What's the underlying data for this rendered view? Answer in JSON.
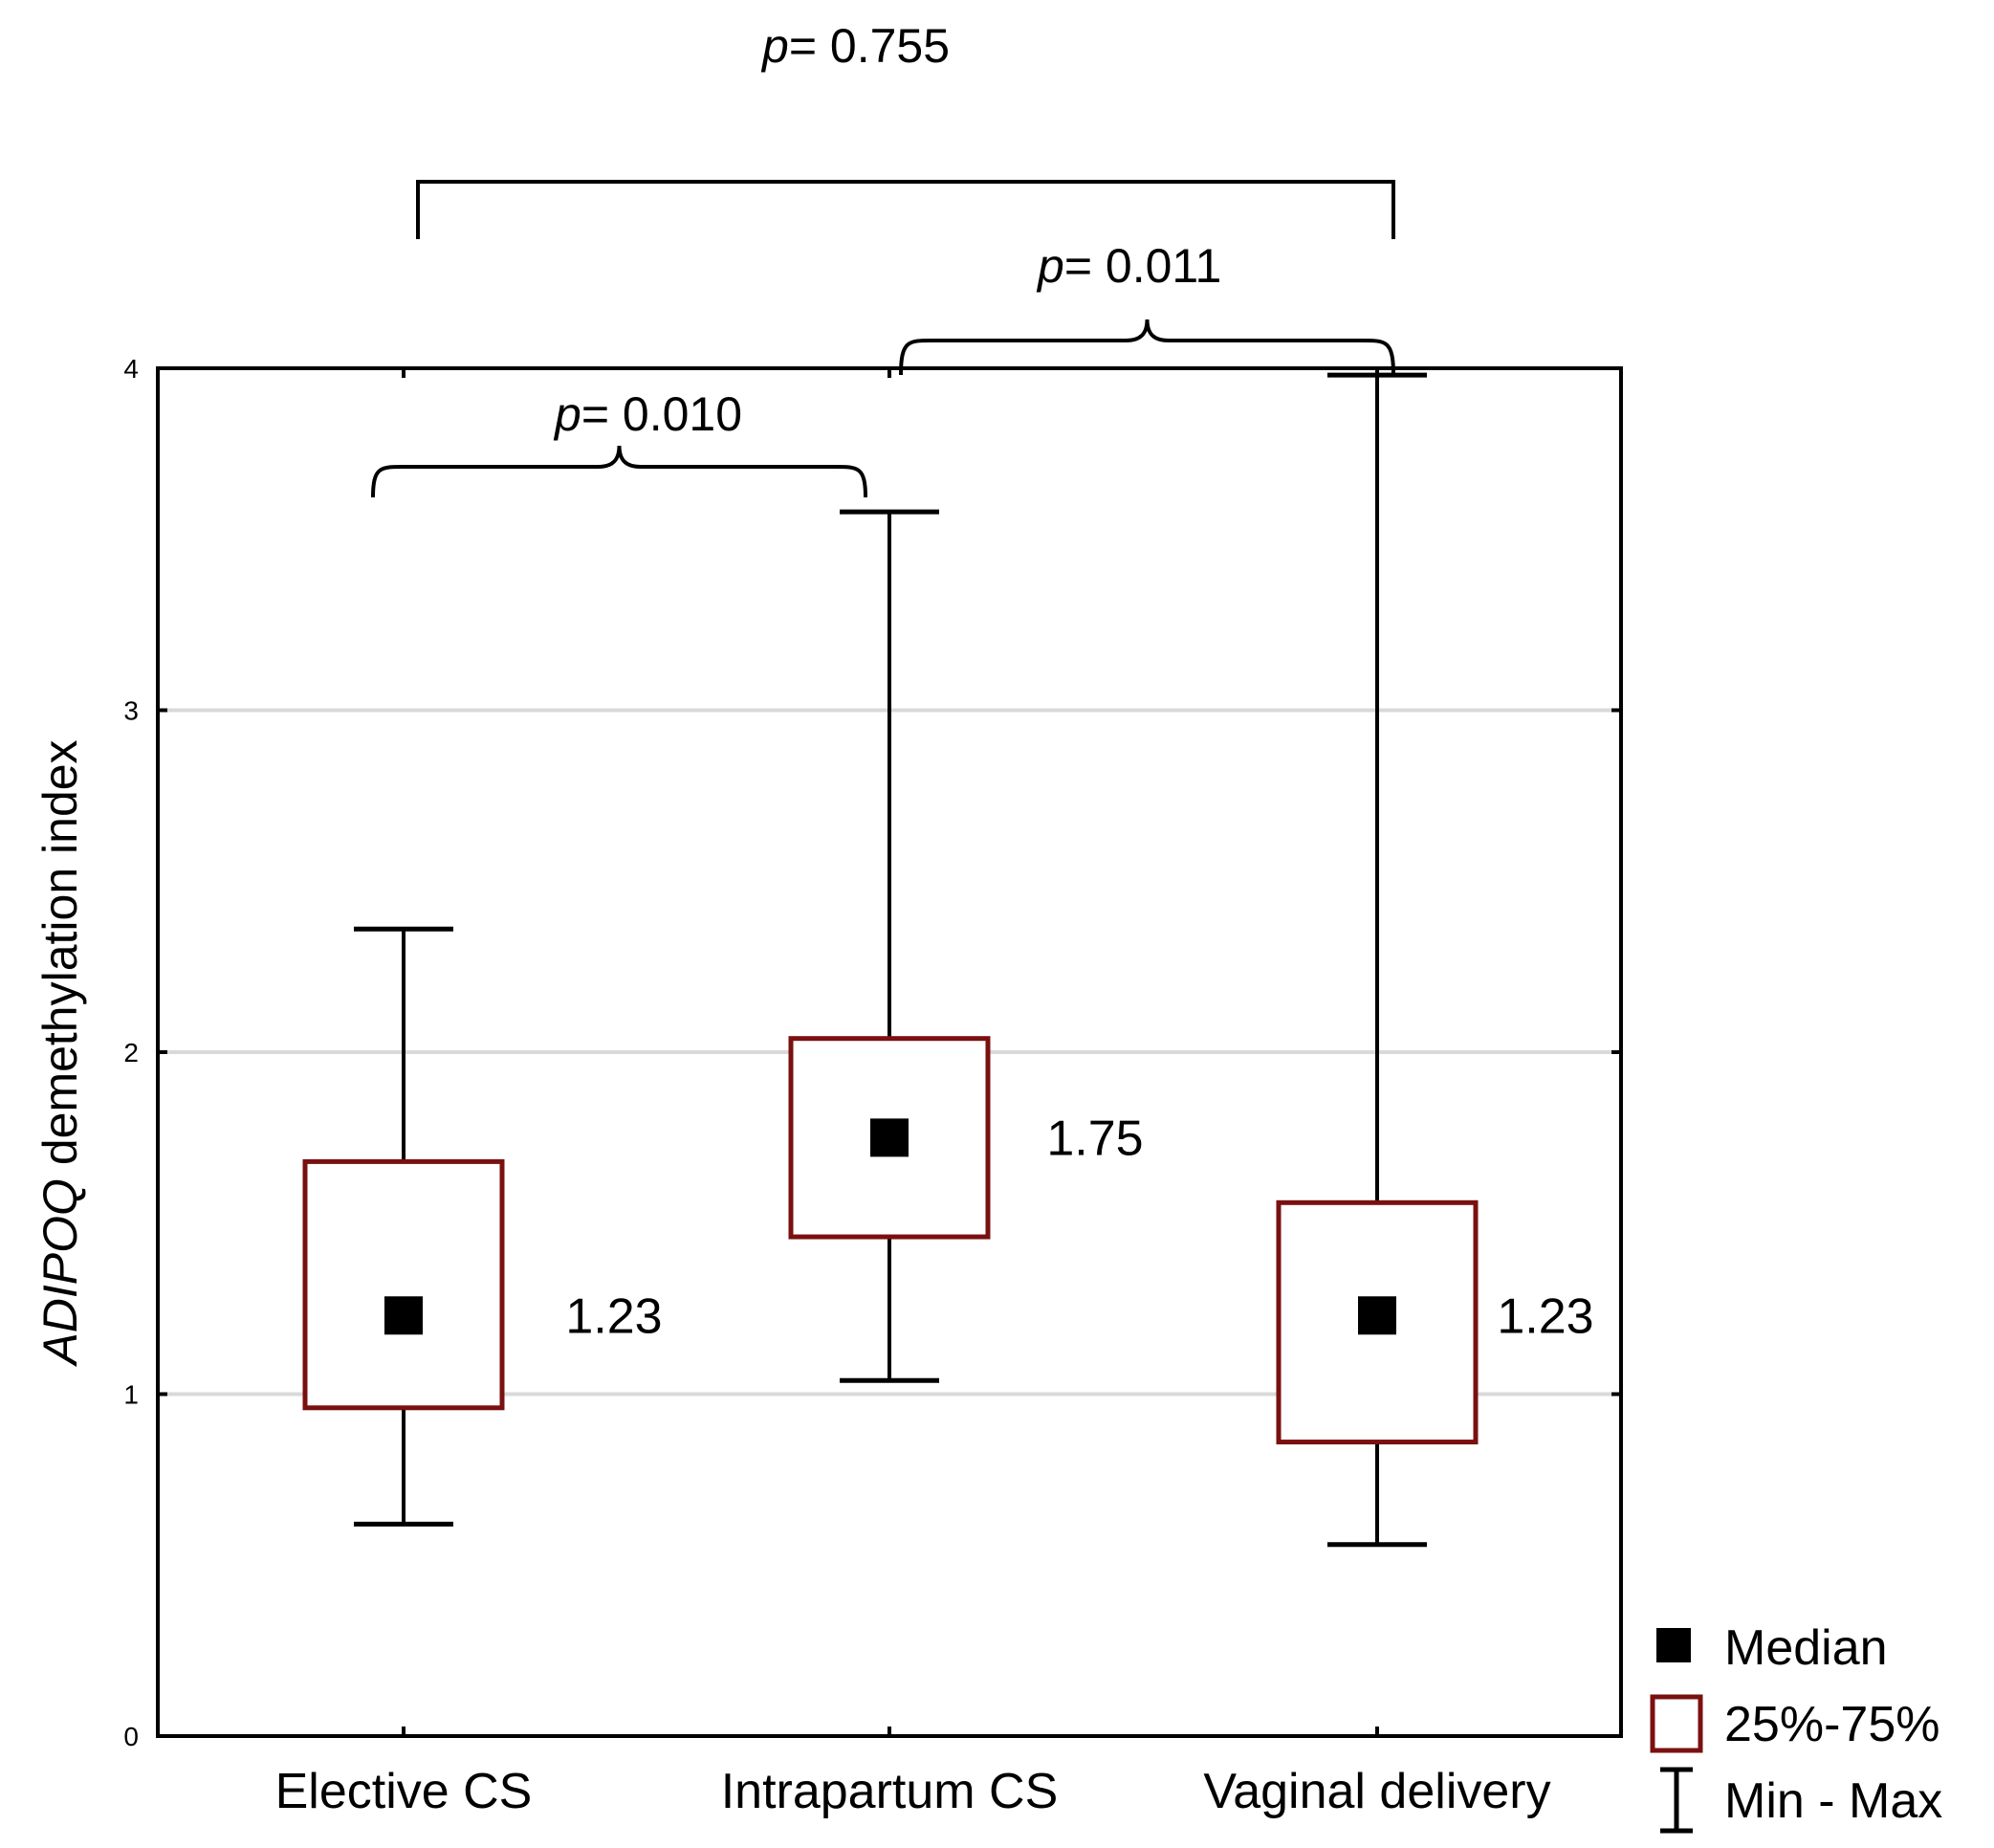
{
  "chart_data": {
    "type": "box",
    "ylabel_italic": "ADIPOQ",
    "ylabel_rest": " demethylation index",
    "ylim": [
      0,
      4
    ],
    "yticks": [
      "0",
      "1",
      "2",
      "3",
      "4"
    ],
    "grid": "horizontal",
    "categories": [
      "Elective CS",
      "Intrapartum CS",
      "Vaginal delivery"
    ],
    "boxes": [
      {
        "category": "Elective CS",
        "min": 0.62,
        "q1": 0.96,
        "median": 1.23,
        "q3": 1.68,
        "max": 2.36,
        "label": "1.23"
      },
      {
        "category": "Intrapartum CS",
        "min": 1.04,
        "q1": 1.46,
        "median": 1.75,
        "q3": 2.04,
        "max": 3.58,
        "label": "1.75"
      },
      {
        "category": "Vaginal delivery",
        "min": 0.56,
        "q1": 0.86,
        "median": 1.23,
        "q3": 1.56,
        "max": 3.98,
        "label": "1.23"
      }
    ],
    "comparisons": [
      {
        "p_symbol": "p",
        "p_text": "= 0.010",
        "groups": [
          "Elective CS",
          "Intrapartum CS"
        ]
      },
      {
        "p_symbol": "p",
        "p_text": "= 0.011",
        "groups": [
          "Intrapartum CS",
          "Vaginal delivery"
        ]
      },
      {
        "p_symbol": "p",
        "p_text": "= 0.755",
        "groups": [
          "Elective CS",
          "Vaginal delivery"
        ]
      }
    ],
    "legend": {
      "position": "bottom-right",
      "items": [
        {
          "symbol": "filled-square",
          "label": "Median"
        },
        {
          "symbol": "open-square",
          "label": "25%-75%"
        },
        {
          "symbol": "whisker",
          "label": "Min - Max"
        }
      ]
    },
    "colors": {
      "box_edge": "#7a1010",
      "median": "#000000",
      "whisker": "#000000",
      "grid": "#d9d9d9"
    }
  }
}
